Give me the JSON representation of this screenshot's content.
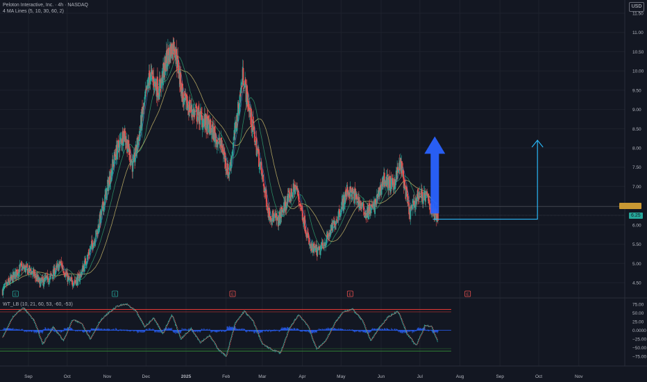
{
  "header": {
    "symbol_line": "Peloton Interactive, Inc. · 4h · NASDAQ",
    "indicator_line": "4 MA Lines (5, 10, 30, 60, 2)",
    "oscillator_label": "WT_LB (10, 21, 60, 53, -60, -53)",
    "currency": "USD"
  },
  "price_tags": [
    {
      "label": "",
      "value": 6.48,
      "color": "#c99833"
    },
    {
      "label": "6.25",
      "value": 6.25,
      "color": "#26a69a"
    }
  ],
  "colors": {
    "background": "#131722",
    "grid": "#1e222d",
    "up_candle": "#26a69a",
    "down_candle": "#ef5350",
    "ma_fast": "#2e9e6e",
    "ma_slow": "#c9b86a",
    "arrow_blue": "#2962ff",
    "projection_line": "#29b6f6",
    "wt_red": "#e53935",
    "wt_green": "#2e7d32",
    "wt_blue": "#2962ff"
  },
  "chart_data": [
    {
      "type": "candlestick",
      "ylim": [
        4.2,
        11.6
      ],
      "y_ticks": [
        "4.50",
        "5.00",
        "5.50",
        "6.00",
        "6.50",
        "7.00",
        "7.50",
        "8.00",
        "8.50",
        "9.00",
        "9.50",
        "10.00",
        "10.50",
        "11.00",
        "11.50"
      ],
      "x_ticks": [
        "Sep",
        "Oct",
        "Nov",
        "Dec",
        "2025",
        "Feb",
        "Mar",
        "Apr",
        "May",
        "Jun",
        "Jul",
        "Aug",
        "Sep",
        "Oct",
        "Nov"
      ],
      "price_path": [
        [
          "2024-08-12",
          4.3
        ],
        [
          "2024-08-26",
          4.9
        ],
        [
          "2024-09-03",
          4.8
        ],
        [
          "2024-09-10",
          4.5
        ],
        [
          "2024-09-17",
          4.6
        ],
        [
          "2024-09-26",
          5.0
        ],
        [
          "2024-10-03",
          4.5
        ],
        [
          "2024-10-10",
          4.6
        ],
        [
          "2024-10-17",
          5.2
        ],
        [
          "2024-10-24",
          5.8
        ],
        [
          "2024-10-31",
          6.8
        ],
        [
          "2024-11-07",
          7.8
        ],
        [
          "2024-11-14",
          8.4
        ],
        [
          "2024-11-21",
          7.5
        ],
        [
          "2024-11-28",
          8.8
        ],
        [
          "2024-12-04",
          9.9
        ],
        [
          "2024-12-11",
          9.5
        ],
        [
          "2024-12-18",
          10.4
        ],
        [
          "2024-12-23",
          10.7
        ],
        [
          "2024-12-30",
          9.2
        ],
        [
          "2025-01-08",
          8.9
        ],
        [
          "2025-01-15",
          8.7
        ],
        [
          "2025-01-22",
          8.4
        ],
        [
          "2025-01-29",
          8.0
        ],
        [
          "2025-02-03",
          7.3
        ],
        [
          "2025-02-10",
          8.9
        ],
        [
          "2025-02-14",
          9.9
        ],
        [
          "2025-02-20",
          8.8
        ],
        [
          "2025-02-27",
          7.6
        ],
        [
          "2025-03-06",
          6.3
        ],
        [
          "2025-03-13",
          6.1
        ],
        [
          "2025-03-20",
          6.6
        ],
        [
          "2025-03-27",
          7.0
        ],
        [
          "2025-04-01",
          6.3
        ],
        [
          "2025-04-07",
          5.4
        ],
        [
          "2025-04-14",
          5.3
        ],
        [
          "2025-04-21",
          5.7
        ],
        [
          "2025-04-28",
          6.2
        ],
        [
          "2025-05-06",
          6.9
        ],
        [
          "2025-05-13",
          6.7
        ],
        [
          "2025-05-20",
          6.3
        ],
        [
          "2025-05-27",
          6.5
        ],
        [
          "2025-06-03",
          7.2
        ],
        [
          "2025-06-10",
          7.0
        ],
        [
          "2025-06-16",
          7.6
        ],
        [
          "2025-06-23",
          6.3
        ],
        [
          "2025-06-30",
          6.8
        ],
        [
          "2025-07-07",
          6.7
        ],
        [
          "2025-07-11",
          6.3
        ],
        [
          "2025-07-15",
          6.25
        ]
      ],
      "earnings_markers": [
        {
          "date": "2024-08-22",
          "letter": "E",
          "color": "#26a69a"
        },
        {
          "date": "2024-11-07",
          "letter": "E",
          "color": "#26a69a"
        },
        {
          "date": "2025-02-06",
          "letter": "E",
          "color": "#ef5350"
        },
        {
          "date": "2025-05-08",
          "letter": "E",
          "color": "#ef5350"
        },
        {
          "date": "2025-08-07",
          "letter": "E",
          "color": "#ef5350"
        }
      ],
      "annotations": {
        "horizontal_levels": [
          6.48,
          6.25
        ],
        "blue_arrow": {
          "date": "2025-07-12",
          "from": 6.3,
          "to": 8.3
        },
        "projection": {
          "start_date": "2025-07-11",
          "end_date": "2025-09-30",
          "start": 6.15,
          "end": 8.2
        }
      }
    },
    {
      "type": "line",
      "name": "WT_LB",
      "ylim": [
        -90,
        90
      ],
      "y_ticks": [
        "75.00",
        "50.00",
        "25.00",
        "0.0000",
        "−25.00",
        "−50.00",
        "−75.00"
      ],
      "levels": [
        60,
        53,
        0,
        -53,
        -60
      ],
      "oscillator_path": [
        [
          "2024-08-12",
          -20
        ],
        [
          "2024-08-20",
          40
        ],
        [
          "2024-08-28",
          65
        ],
        [
          "2024-09-05",
          30
        ],
        [
          "2024-09-12",
          -40
        ],
        [
          "2024-09-20",
          10
        ],
        [
          "2024-09-28",
          -30
        ],
        [
          "2024-10-05",
          30
        ],
        [
          "2024-10-12",
          20
        ],
        [
          "2024-10-19",
          -25
        ],
        [
          "2024-10-26",
          25
        ],
        [
          "2024-11-02",
          50
        ],
        [
          "2024-11-09",
          70
        ],
        [
          "2024-11-16",
          75
        ],
        [
          "2024-11-23",
          55
        ],
        [
          "2024-11-30",
          10
        ],
        [
          "2024-12-07",
          35
        ],
        [
          "2024-12-14",
          -10
        ],
        [
          "2024-12-21",
          45
        ],
        [
          "2024-12-28",
          -25
        ],
        [
          "2025-01-05",
          5
        ],
        [
          "2025-01-12",
          -35
        ],
        [
          "2025-01-19",
          -15
        ],
        [
          "2025-01-26",
          -55
        ],
        [
          "2025-02-01",
          -75
        ],
        [
          "2025-02-08",
          20
        ],
        [
          "2025-02-15",
          55
        ],
        [
          "2025-02-22",
          25
        ],
        [
          "2025-03-01",
          -40
        ],
        [
          "2025-03-08",
          -55
        ],
        [
          "2025-03-15",
          -65
        ],
        [
          "2025-03-22",
          5
        ],
        [
          "2025-03-29",
          45
        ],
        [
          "2025-04-05",
          15
        ],
        [
          "2025-04-12",
          -55
        ],
        [
          "2025-04-19",
          -30
        ],
        [
          "2025-04-26",
          20
        ],
        [
          "2025-05-03",
          55
        ],
        [
          "2025-05-10",
          60
        ],
        [
          "2025-05-17",
          30
        ],
        [
          "2025-05-24",
          -30
        ],
        [
          "2025-05-31",
          10
        ],
        [
          "2025-06-07",
          40
        ],
        [
          "2025-06-14",
          55
        ],
        [
          "2025-06-21",
          -10
        ],
        [
          "2025-06-28",
          -45
        ],
        [
          "2025-07-05",
          15
        ],
        [
          "2025-07-10",
          10
        ],
        [
          "2025-07-15",
          -35
        ]
      ]
    }
  ]
}
